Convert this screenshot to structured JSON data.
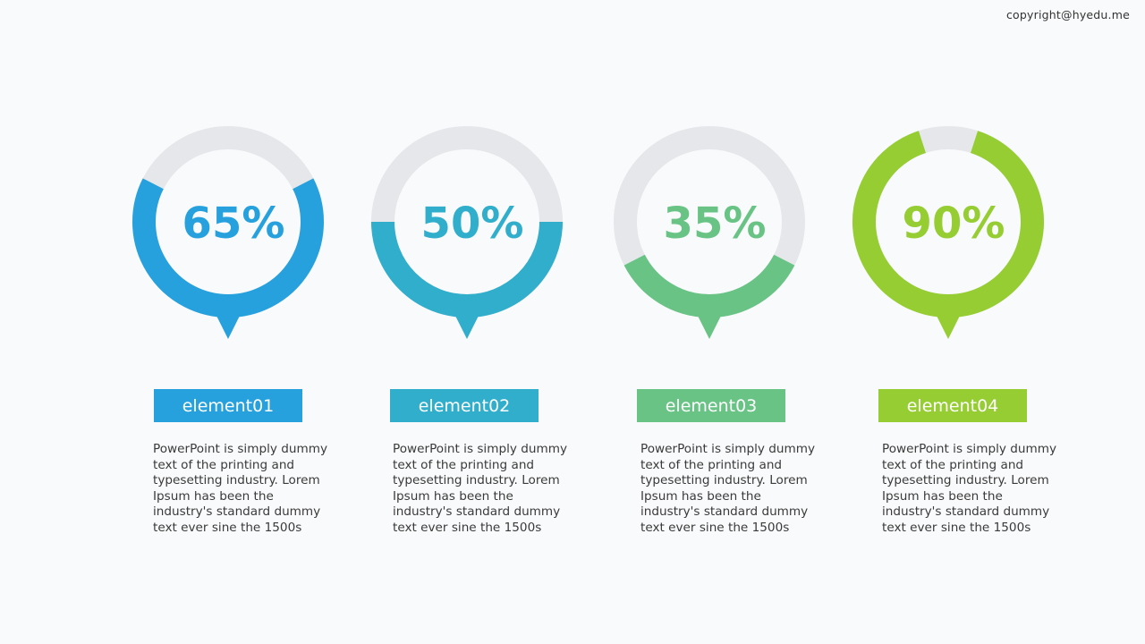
{
  "copyright": "copyright@hyedu.me",
  "colors": {
    "track": "#e6e7ea",
    "background": "#f9fafb"
  },
  "chart_data": {
    "type": "ring-gauge",
    "title": "",
    "items": [
      {
        "label": "element01",
        "value": 65,
        "display": "65%",
        "color": "#27a1dd",
        "description": "PowerPoint is simply dummy text of the printing and typesetting industry. Lorem Ipsum has been the industry's standard dummy text ever sine the 1500s"
      },
      {
        "label": "element02",
        "value": 50,
        "display": "50%",
        "color": "#30aecb",
        "description": "PowerPoint is simply dummy text of the printing and typesetting industry. Lorem Ipsum has been the industry's standard dummy text ever sine the 1500s"
      },
      {
        "label": "element03",
        "value": 35,
        "display": "35%",
        "color": "#68c385",
        "description": "PowerPoint is simply dummy text of the printing and typesetting industry. Lorem Ipsum has been the industry's standard dummy text ever sine the 1500s"
      },
      {
        "label": "element04",
        "value": 90,
        "display": "90%",
        "color": "#95cd33",
        "description": "PowerPoint is simply dummy text of the printing and typesetting industry. Lorem Ipsum has been the industry's standard dummy text ever sine the 1500s"
      }
    ]
  }
}
